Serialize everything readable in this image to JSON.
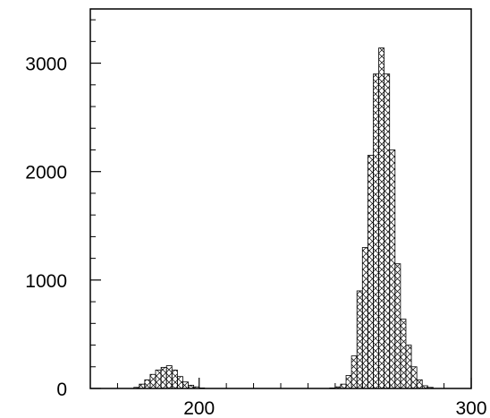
{
  "chart_data": {
    "type": "bar",
    "title": "",
    "xlabel": "",
    "ylabel": "",
    "xlim": [
      160,
      300
    ],
    "ylim": [
      0,
      3500
    ],
    "bin_width": 2,
    "x_ticks": [
      200,
      300
    ],
    "x_tick_labels": [
      "200",
      "300"
    ],
    "y_ticks": [
      0,
      1000,
      2000,
      3000
    ],
    "y_tick_labels": [
      "0",
      "1000",
      "2000",
      "3000"
    ],
    "fill_pattern": "cross-hatch",
    "grid": false,
    "legend": "none",
    "x": [
      176,
      178,
      180,
      182,
      184,
      186,
      188,
      190,
      192,
      194,
      196,
      198,
      200,
      248,
      250,
      252,
      254,
      256,
      258,
      260,
      262,
      264,
      266,
      268,
      270,
      272,
      274,
      276,
      278,
      280,
      282,
      284
    ],
    "values": [
      10,
      40,
      80,
      130,
      170,
      195,
      210,
      170,
      110,
      60,
      30,
      15,
      5,
      5,
      15,
      40,
      120,
      300,
      900,
      1300,
      2150,
      2900,
      3140,
      2900,
      2200,
      1150,
      640,
      400,
      200,
      80,
      25,
      10
    ]
  }
}
